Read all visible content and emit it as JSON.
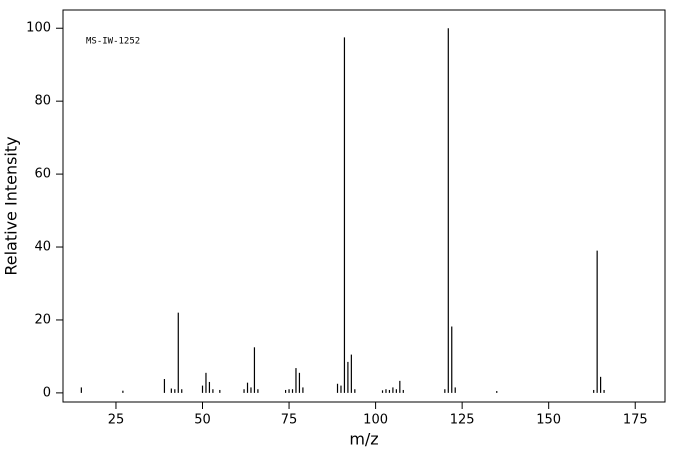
{
  "chart_data": {
    "type": "stem",
    "annotation": "MS-IW-1252",
    "xlabel": "m/z",
    "ylabel": "Relative Intensity",
    "x": [
      15,
      27,
      39,
      41,
      42,
      43,
      44,
      50,
      51,
      52,
      53,
      55,
      62,
      63,
      64,
      65,
      66,
      74,
      75,
      76,
      77,
      78,
      79,
      89,
      90,
      91,
      92,
      93,
      94,
      102,
      103,
      104,
      105,
      106,
      107,
      108,
      120,
      121,
      122,
      123,
      135,
      163,
      164,
      165,
      166
    ],
    "values": [
      1.5,
      0.6,
      3.8,
      1.2,
      1,
      22,
      1,
      2,
      5.5,
      3,
      1,
      0.8,
      1,
      2.8,
      1.5,
      12.5,
      1,
      0.8,
      1,
      1,
      6.8,
      5.5,
      1.5,
      2.5,
      2,
      97.5,
      8.5,
      10.5,
      1,
      0.7,
      1,
      0.8,
      1.5,
      1,
      3.3,
      0.8,
      1,
      100,
      18.2,
      1.5,
      0.5,
      0.8,
      39,
      4.4,
      0.8
    ],
    "color": "#000000",
    "xlim": [
      9.7,
      183.6
    ],
    "ylim": [
      -2.5,
      105
    ],
    "xticks": [
      25,
      50,
      75,
      100,
      125,
      150,
      175
    ],
    "yticks": [
      0,
      20,
      40,
      60,
      80,
      100
    ]
  }
}
